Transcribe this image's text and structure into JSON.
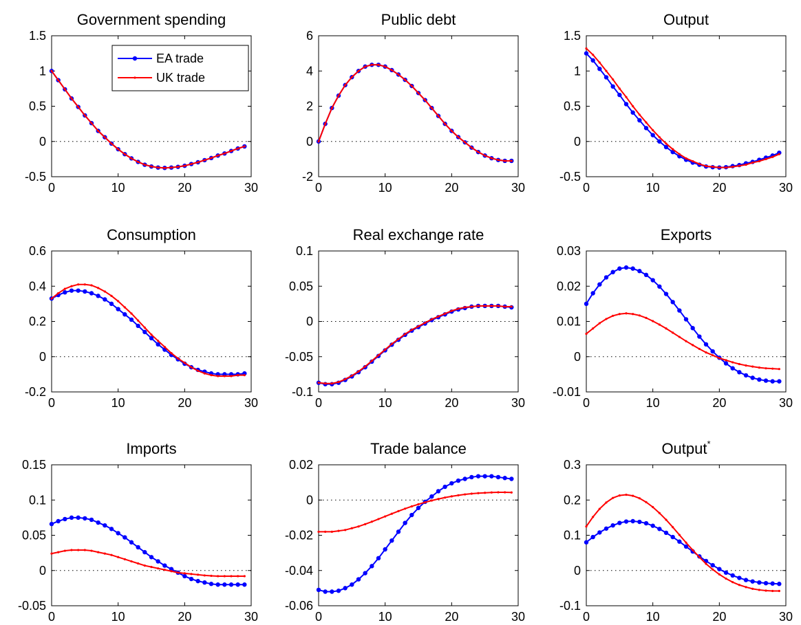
{
  "chart_data": [
    {
      "type": "line",
      "title": "Government spending",
      "x": [
        0,
        1,
        2,
        3,
        4,
        5,
        6,
        7,
        8,
        9,
        10,
        11,
        12,
        13,
        14,
        15,
        16,
        17,
        18,
        19,
        20,
        21,
        22,
        23,
        24,
        25,
        26,
        27,
        28,
        29
      ],
      "xlim": [
        0,
        30
      ],
      "xticks": [
        0,
        10,
        20,
        30
      ],
      "ylim": [
        -0.5,
        1.5
      ],
      "yticks": [
        -0.5,
        0,
        0.5,
        1,
        1.5
      ],
      "legend": "upper right",
      "series": [
        {
          "name": "EA trade",
          "color": "#0000ff",
          "values": [
            1,
            0.87,
            0.74,
            0.61,
            0.49,
            0.37,
            0.26,
            0.15,
            0.06,
            -0.03,
            -0.11,
            -0.18,
            -0.24,
            -0.29,
            -0.33,
            -0.355,
            -0.37,
            -0.375,
            -0.37,
            -0.36,
            -0.345,
            -0.32,
            -0.295,
            -0.265,
            -0.235,
            -0.2,
            -0.17,
            -0.135,
            -0.1,
            -0.07
          ]
        },
        {
          "name": "UK trade",
          "color": "#ff0000",
          "values": [
            1,
            0.87,
            0.74,
            0.61,
            0.49,
            0.37,
            0.26,
            0.15,
            0.06,
            -0.03,
            -0.11,
            -0.18,
            -0.24,
            -0.29,
            -0.33,
            -0.355,
            -0.37,
            -0.375,
            -0.37,
            -0.36,
            -0.345,
            -0.32,
            -0.295,
            -0.265,
            -0.235,
            -0.2,
            -0.17,
            -0.135,
            -0.1,
            -0.07
          ]
        }
      ]
    },
    {
      "type": "line",
      "title": "Public debt",
      "x": [
        0,
        1,
        2,
        3,
        4,
        5,
        6,
        7,
        8,
        9,
        10,
        11,
        12,
        13,
        14,
        15,
        16,
        17,
        18,
        19,
        20,
        21,
        22,
        23,
        24,
        25,
        26,
        27,
        28,
        29
      ],
      "xlim": [
        0,
        30
      ],
      "xticks": [
        0,
        10,
        20,
        30
      ],
      "ylim": [
        -2,
        6
      ],
      "yticks": [
        -2,
        0,
        2,
        4,
        6
      ],
      "series": [
        {
          "color": "#0000ff",
          "values": [
            0,
            1.0,
            1.9,
            2.6,
            3.2,
            3.65,
            4.0,
            4.25,
            4.35,
            4.35,
            4.25,
            4.05,
            3.8,
            3.5,
            3.15,
            2.75,
            2.35,
            1.9,
            1.45,
            1.0,
            0.6,
            0.25,
            -0.05,
            -0.35,
            -0.6,
            -0.8,
            -0.95,
            -1.05,
            -1.1,
            -1.1
          ]
        },
        {
          "color": "#ff0000",
          "values": [
            0,
            1.0,
            1.9,
            2.6,
            3.2,
            3.65,
            4.0,
            4.25,
            4.35,
            4.35,
            4.25,
            4.05,
            3.8,
            3.5,
            3.15,
            2.75,
            2.35,
            1.9,
            1.45,
            1.0,
            0.6,
            0.25,
            -0.05,
            -0.35,
            -0.6,
            -0.8,
            -0.95,
            -1.05,
            -1.1,
            -1.1
          ]
        }
      ]
    },
    {
      "type": "line",
      "title": "Output",
      "x": [
        0,
        1,
        2,
        3,
        4,
        5,
        6,
        7,
        8,
        9,
        10,
        11,
        12,
        13,
        14,
        15,
        16,
        17,
        18,
        19,
        20,
        21,
        22,
        23,
        24,
        25,
        26,
        27,
        28,
        29
      ],
      "xlim": [
        0,
        30
      ],
      "xticks": [
        0,
        10,
        20,
        30
      ],
      "ylim": [
        -0.5,
        1.5
      ],
      "yticks": [
        -0.5,
        0,
        0.5,
        1,
        1.5
      ],
      "series": [
        {
          "color": "#0000ff",
          "values": [
            1.25,
            1.15,
            1.03,
            0.91,
            0.78,
            0.66,
            0.53,
            0.41,
            0.3,
            0.19,
            0.09,
            0.0,
            -0.08,
            -0.15,
            -0.21,
            -0.26,
            -0.3,
            -0.33,
            -0.355,
            -0.365,
            -0.37,
            -0.365,
            -0.35,
            -0.335,
            -0.31,
            -0.29,
            -0.26,
            -0.23,
            -0.2,
            -0.16
          ]
        },
        {
          "color": "#ff0000",
          "values": [
            1.32,
            1.23,
            1.12,
            1.0,
            0.88,
            0.75,
            0.63,
            0.5,
            0.38,
            0.27,
            0.16,
            0.06,
            -0.03,
            -0.11,
            -0.18,
            -0.24,
            -0.28,
            -0.32,
            -0.35,
            -0.36,
            -0.37,
            -0.37,
            -0.36,
            -0.345,
            -0.33,
            -0.3,
            -0.28,
            -0.25,
            -0.22,
            -0.18
          ]
        }
      ]
    },
    {
      "type": "line",
      "title": "Consumption",
      "x": [
        0,
        1,
        2,
        3,
        4,
        5,
        6,
        7,
        8,
        9,
        10,
        11,
        12,
        13,
        14,
        15,
        16,
        17,
        18,
        19,
        20,
        21,
        22,
        23,
        24,
        25,
        26,
        27,
        28,
        29
      ],
      "xlim": [
        0,
        30
      ],
      "xticks": [
        0,
        10,
        20,
        30
      ],
      "ylim": [
        -0.2,
        0.6
      ],
      "yticks": [
        -0.2,
        0,
        0.2,
        0.4,
        0.6
      ],
      "series": [
        {
          "color": "#0000ff",
          "values": [
            0.33,
            0.35,
            0.365,
            0.375,
            0.375,
            0.37,
            0.36,
            0.345,
            0.325,
            0.3,
            0.27,
            0.24,
            0.21,
            0.175,
            0.14,
            0.105,
            0.07,
            0.04,
            0.01,
            -0.015,
            -0.04,
            -0.06,
            -0.075,
            -0.085,
            -0.095,
            -0.1,
            -0.1,
            -0.1,
            -0.1,
            -0.095
          ]
        },
        {
          "color": "#ff0000",
          "values": [
            0.33,
            0.36,
            0.385,
            0.4,
            0.41,
            0.41,
            0.405,
            0.39,
            0.37,
            0.345,
            0.315,
            0.28,
            0.245,
            0.205,
            0.165,
            0.125,
            0.09,
            0.055,
            0.02,
            -0.01,
            -0.035,
            -0.06,
            -0.08,
            -0.095,
            -0.105,
            -0.11,
            -0.11,
            -0.11,
            -0.105,
            -0.105
          ]
        }
      ]
    },
    {
      "type": "line",
      "title": "Real exchange rate",
      "x": [
        0,
        1,
        2,
        3,
        4,
        5,
        6,
        7,
        8,
        9,
        10,
        11,
        12,
        13,
        14,
        15,
        16,
        17,
        18,
        19,
        20,
        21,
        22,
        23,
        24,
        25,
        26,
        27,
        28,
        29
      ],
      "xlim": [
        0,
        30
      ],
      "xticks": [
        0,
        10,
        20,
        30
      ],
      "ylim": [
        -0.1,
        0.1
      ],
      "yticks": [
        -0.1,
        -0.05,
        0,
        0.05,
        0.1
      ],
      "series": [
        {
          "color": "#0000ff",
          "values": [
            -0.087,
            -0.089,
            -0.089,
            -0.087,
            -0.083,
            -0.078,
            -0.072,
            -0.065,
            -0.057,
            -0.049,
            -0.041,
            -0.033,
            -0.026,
            -0.019,
            -0.013,
            -0.008,
            -0.003,
            0.002,
            0.006,
            0.01,
            0.014,
            0.017,
            0.019,
            0.021,
            0.022,
            0.022,
            0.022,
            0.022,
            0.021,
            0.02
          ]
        },
        {
          "color": "#ff0000",
          "values": [
            -0.087,
            -0.088,
            -0.088,
            -0.086,
            -0.082,
            -0.077,
            -0.071,
            -0.064,
            -0.056,
            -0.048,
            -0.04,
            -0.032,
            -0.025,
            -0.018,
            -0.012,
            -0.007,
            -0.002,
            0.003,
            0.007,
            0.011,
            0.015,
            0.018,
            0.02,
            0.021,
            0.022,
            0.022,
            0.022,
            0.022,
            0.021,
            0.021
          ]
        }
      ]
    },
    {
      "type": "line",
      "title": "Exports",
      "x": [
        0,
        1,
        2,
        3,
        4,
        5,
        6,
        7,
        8,
        9,
        10,
        11,
        12,
        13,
        14,
        15,
        16,
        17,
        18,
        19,
        20,
        21,
        22,
        23,
        24,
        25,
        26,
        27,
        28,
        29
      ],
      "xlim": [
        0,
        30
      ],
      "xticks": [
        0,
        10,
        20,
        30
      ],
      "ylim": [
        -0.01,
        0.03
      ],
      "yticks": [
        -0.01,
        0,
        0.01,
        0.02,
        0.03
      ],
      "series": [
        {
          "color": "#0000ff",
          "values": [
            0.015,
            0.018,
            0.0205,
            0.0225,
            0.024,
            0.025,
            0.0253,
            0.025,
            0.0243,
            0.0232,
            0.0217,
            0.0199,
            0.0178,
            0.0155,
            0.0131,
            0.0106,
            0.0081,
            0.0057,
            0.0035,
            0.0015,
            -0.0003,
            -0.0019,
            -0.0033,
            -0.0044,
            -0.0053,
            -0.006,
            -0.0065,
            -0.0068,
            -0.007,
            -0.007
          ]
        },
        {
          "color": "#ff0000",
          "values": [
            0.0065,
            0.008,
            0.0095,
            0.0107,
            0.0116,
            0.0121,
            0.0123,
            0.0121,
            0.0117,
            0.011,
            0.0101,
            0.0091,
            0.008,
            0.0068,
            0.0056,
            0.0044,
            0.0033,
            0.0022,
            0.0012,
            0.0004,
            -0.0004,
            -0.001,
            -0.0016,
            -0.0021,
            -0.0025,
            -0.0028,
            -0.0031,
            -0.0033,
            -0.0034,
            -0.0035
          ]
        }
      ]
    },
    {
      "type": "line",
      "title": "Imports",
      "x": [
        0,
        1,
        2,
        3,
        4,
        5,
        6,
        7,
        8,
        9,
        10,
        11,
        12,
        13,
        14,
        15,
        16,
        17,
        18,
        19,
        20,
        21,
        22,
        23,
        24,
        25,
        26,
        27,
        28,
        29
      ],
      "xlim": [
        0,
        30
      ],
      "xticks": [
        0,
        10,
        20,
        30
      ],
      "ylim": [
        -0.05,
        0.15
      ],
      "yticks": [
        -0.05,
        0,
        0.05,
        0.1,
        0.15
      ],
      "series": [
        {
          "color": "#0000ff",
          "values": [
            0.066,
            0.07,
            0.073,
            0.075,
            0.075,
            0.074,
            0.072,
            0.068,
            0.064,
            0.059,
            0.053,
            0.047,
            0.04,
            0.033,
            0.026,
            0.019,
            0.013,
            0.007,
            0.002,
            -0.003,
            -0.008,
            -0.012,
            -0.015,
            -0.017,
            -0.019,
            -0.02,
            -0.02,
            -0.02,
            -0.02,
            -0.02
          ]
        },
        {
          "color": "#ff0000",
          "values": [
            0.024,
            0.026,
            0.028,
            0.029,
            0.029,
            0.029,
            0.028,
            0.026,
            0.024,
            0.022,
            0.019,
            0.016,
            0.013,
            0.01,
            0.007,
            0.005,
            0.003,
            0.001,
            -0.001,
            -0.003,
            -0.004,
            -0.005,
            -0.006,
            -0.007,
            -0.0075,
            -0.008,
            -0.008,
            -0.008,
            -0.008,
            -0.008
          ]
        }
      ]
    },
    {
      "type": "line",
      "title": "Trade balance",
      "x": [
        0,
        1,
        2,
        3,
        4,
        5,
        6,
        7,
        8,
        9,
        10,
        11,
        12,
        13,
        14,
        15,
        16,
        17,
        18,
        19,
        20,
        21,
        22,
        23,
        24,
        25,
        26,
        27,
        28,
        29
      ],
      "xlim": [
        0,
        30
      ],
      "xticks": [
        0,
        10,
        20,
        30
      ],
      "ylim": [
        -0.06,
        0.02
      ],
      "yticks": [
        -0.06,
        -0.04,
        -0.02,
        0,
        0.02
      ],
      "series": [
        {
          "color": "#0000ff",
          "values": [
            -0.051,
            -0.052,
            -0.052,
            -0.0515,
            -0.05,
            -0.048,
            -0.045,
            -0.0415,
            -0.0375,
            -0.033,
            -0.028,
            -0.023,
            -0.018,
            -0.013,
            -0.0085,
            -0.0045,
            -0.001,
            0.002,
            0.005,
            0.0075,
            0.0095,
            0.011,
            0.012,
            0.013,
            0.0135,
            0.0135,
            0.0135,
            0.013,
            0.0125,
            0.012
          ]
        },
        {
          "color": "#ff0000",
          "values": [
            -0.018,
            -0.018,
            -0.018,
            -0.0175,
            -0.017,
            -0.016,
            -0.015,
            -0.0137,
            -0.0123,
            -0.0108,
            -0.0093,
            -0.0078,
            -0.0063,
            -0.0049,
            -0.0036,
            -0.0024,
            -0.0013,
            -0.0003,
            0.0006,
            0.0014,
            0.0021,
            0.0027,
            0.0032,
            0.0036,
            0.0039,
            0.0041,
            0.0043,
            0.0044,
            0.0044,
            0.0043
          ]
        }
      ]
    },
    {
      "type": "line",
      "title": "Output",
      "title_superscript": "*",
      "x": [
        0,
        1,
        2,
        3,
        4,
        5,
        6,
        7,
        8,
        9,
        10,
        11,
        12,
        13,
        14,
        15,
        16,
        17,
        18,
        19,
        20,
        21,
        22,
        23,
        24,
        25,
        26,
        27,
        28,
        29
      ],
      "xlim": [
        0,
        30
      ],
      "xticks": [
        0,
        10,
        20,
        30
      ],
      "ylim": [
        -0.1,
        0.3
      ],
      "yticks": [
        -0.1,
        0,
        0.1,
        0.2,
        0.3
      ],
      "series": [
        {
          "color": "#0000ff",
          "values": [
            0.08,
            0.095,
            0.108,
            0.119,
            0.128,
            0.135,
            0.139,
            0.14,
            0.138,
            0.134,
            0.127,
            0.118,
            0.107,
            0.095,
            0.082,
            0.068,
            0.054,
            0.04,
            0.027,
            0.015,
            0.004,
            -0.006,
            -0.014,
            -0.021,
            -0.027,
            -0.031,
            -0.034,
            -0.036,
            -0.037,
            -0.038
          ]
        },
        {
          "color": "#ff0000",
          "values": [
            0.125,
            0.152,
            0.175,
            0.193,
            0.206,
            0.213,
            0.215,
            0.212,
            0.205,
            0.194,
            0.18,
            0.163,
            0.144,
            0.123,
            0.101,
            0.079,
            0.058,
            0.038,
            0.019,
            0.003,
            -0.011,
            -0.023,
            -0.033,
            -0.041,
            -0.047,
            -0.052,
            -0.055,
            -0.057,
            -0.058,
            -0.058
          ]
        }
      ]
    }
  ]
}
